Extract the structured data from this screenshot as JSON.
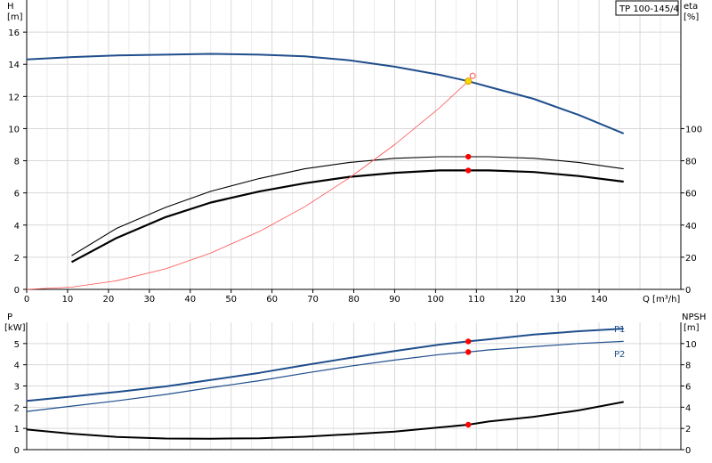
{
  "colors": {
    "head": "#1f4e8c",
    "power": "#1f4e8c",
    "eta": "#000000",
    "npsh": "#000000",
    "system": "#ff4d4d",
    "grid": "#d9d9d9",
    "duty_point": "#ff0000",
    "duty_marker": "#ffd700"
  },
  "pump_label": "TP 100-145/4",
  "chart_data": [
    {
      "type": "line",
      "name": "head-efficiency",
      "xlabel": "Q [m³/h]",
      "ylabel_left_line1": "H",
      "ylabel_left_line2": "[m]",
      "ylabel_right_line1": "eta",
      "ylabel_right_line2": "[%]",
      "xlim": [
        0,
        160
      ],
      "ylim_left": [
        0,
        18
      ],
      "ylim_right": [
        0,
        180
      ],
      "x_ticks": [
        0,
        10,
        20,
        30,
        40,
        50,
        60,
        70,
        80,
        90,
        100,
        110,
        120,
        130,
        140
      ],
      "y_ticks_left": [
        0,
        2,
        4,
        6,
        8,
        10,
        12,
        14,
        16
      ],
      "y_ticks_right": [
        0,
        20,
        40,
        60,
        80,
        100
      ],
      "grid": true,
      "series": [
        {
          "key": "head",
          "axis": "left",
          "values": [
            [
              0,
              14.3
            ],
            [
              11,
              14.45
            ],
            [
              22,
              14.55
            ],
            [
              34,
              14.6
            ],
            [
              45,
              14.65
            ],
            [
              57,
              14.6
            ],
            [
              68,
              14.5
            ],
            [
              79,
              14.25
            ],
            [
              90,
              13.85
            ],
            [
              101,
              13.35
            ],
            [
              108,
              12.95
            ],
            [
              113,
              12.6
            ],
            [
              124,
              11.85
            ],
            [
              135,
              10.85
            ],
            [
              146,
              9.7
            ]
          ]
        },
        {
          "key": "eta_thin",
          "axis": "right",
          "values": [
            [
              11,
              21
            ],
            [
              22,
              38
            ],
            [
              34,
              51
            ],
            [
              45,
              61
            ],
            [
              57,
              69
            ],
            [
              68,
              75
            ],
            [
              79,
              79
            ],
            [
              90,
              81.5
            ],
            [
              101,
              82.5
            ],
            [
              108,
              82.5
            ],
            [
              113,
              82.5
            ],
            [
              124,
              81.5
            ],
            [
              135,
              79
            ],
            [
              146,
              75
            ]
          ]
        },
        {
          "key": "eta_thick",
          "axis": "right",
          "values": [
            [
              11,
              17
            ],
            [
              22,
              32
            ],
            [
              34,
              45
            ],
            [
              45,
              54
            ],
            [
              57,
              61
            ],
            [
              68,
              66
            ],
            [
              79,
              70
            ],
            [
              90,
              72.5
            ],
            [
              101,
              74
            ],
            [
              108,
              74
            ],
            [
              113,
              74
            ],
            [
              124,
              73
            ],
            [
              135,
              70.5
            ],
            [
              146,
              67
            ]
          ]
        },
        {
          "key": "system",
          "axis": "left",
          "values": [
            [
              0,
              0
            ],
            [
              11,
              0.14
            ],
            [
              22,
              0.54
            ],
            [
              34,
              1.28
            ],
            [
              45,
              2.26
            ],
            [
              57,
              3.61
            ],
            [
              68,
              5.14
            ],
            [
              79,
              6.95
            ],
            [
              90,
              9.0
            ],
            [
              101,
              11.3
            ],
            [
              108,
              12.95
            ]
          ]
        }
      ],
      "duty_points": [
        {
          "axis": "left",
          "x": 108,
          "y": 12.95,
          "style": "ring"
        },
        {
          "axis": "right",
          "x": 108,
          "y": 82.5,
          "style": "dot"
        },
        {
          "axis": "right",
          "x": 108,
          "y": 74,
          "style": "dot"
        }
      ]
    },
    {
      "type": "line",
      "name": "power-npsh",
      "ylabel_left_line1": "P",
      "ylabel_left_line2": "[kW]",
      "ylabel_right_line1": "NPSH",
      "ylabel_right_line2": "[m]",
      "xlim": [
        0,
        160
      ],
      "ylim_left": [
        0,
        6
      ],
      "ylim_right": [
        0,
        12
      ],
      "y_ticks_left": [
        0,
        1,
        2,
        3,
        4,
        5
      ],
      "y_ticks_right": [
        0,
        2,
        4,
        6,
        8,
        10
      ],
      "grid": true,
      "series": [
        {
          "key": "p1",
          "name": "P1",
          "axis": "left",
          "values": [
            [
              0,
              2.3
            ],
            [
              11,
              2.5
            ],
            [
              22,
              2.72
            ],
            [
              34,
              2.98
            ],
            [
              45,
              3.28
            ],
            [
              57,
              3.62
            ],
            [
              68,
              3.98
            ],
            [
              79,
              4.32
            ],
            [
              90,
              4.65
            ],
            [
              101,
              4.95
            ],
            [
              108,
              5.1
            ],
            [
              113,
              5.2
            ],
            [
              124,
              5.42
            ],
            [
              135,
              5.58
            ],
            [
              146,
              5.7
            ]
          ]
        },
        {
          "key": "p2",
          "name": "P2",
          "axis": "left",
          "values": [
            [
              0,
              1.8
            ],
            [
              11,
              2.05
            ],
            [
              22,
              2.3
            ],
            [
              34,
              2.6
            ],
            [
              45,
              2.92
            ],
            [
              57,
              3.25
            ],
            [
              68,
              3.6
            ],
            [
              79,
              3.93
            ],
            [
              90,
              4.22
            ],
            [
              101,
              4.48
            ],
            [
              108,
              4.6
            ],
            [
              113,
              4.7
            ],
            [
              124,
              4.85
            ],
            [
              135,
              5.0
            ],
            [
              146,
              5.1
            ]
          ]
        },
        {
          "key": "npsh",
          "axis": "right",
          "values": [
            [
              0,
              1.9
            ],
            [
              11,
              1.5
            ],
            [
              22,
              1.2
            ],
            [
              34,
              1.05
            ],
            [
              45,
              1.03
            ],
            [
              57,
              1.07
            ],
            [
              68,
              1.22
            ],
            [
              79,
              1.45
            ],
            [
              90,
              1.7
            ],
            [
              101,
              2.1
            ],
            [
              108,
              2.35
            ],
            [
              113,
              2.65
            ],
            [
              124,
              3.1
            ],
            [
              135,
              3.7
            ],
            [
              146,
              4.5
            ]
          ]
        }
      ],
      "duty_points": [
        {
          "axis": "left",
          "x": 108,
          "y": 5.1,
          "style": "dot"
        },
        {
          "axis": "left",
          "x": 108,
          "y": 4.6,
          "style": "dot"
        },
        {
          "axis": "right",
          "x": 108,
          "y": 2.35,
          "style": "dot"
        }
      ]
    }
  ]
}
